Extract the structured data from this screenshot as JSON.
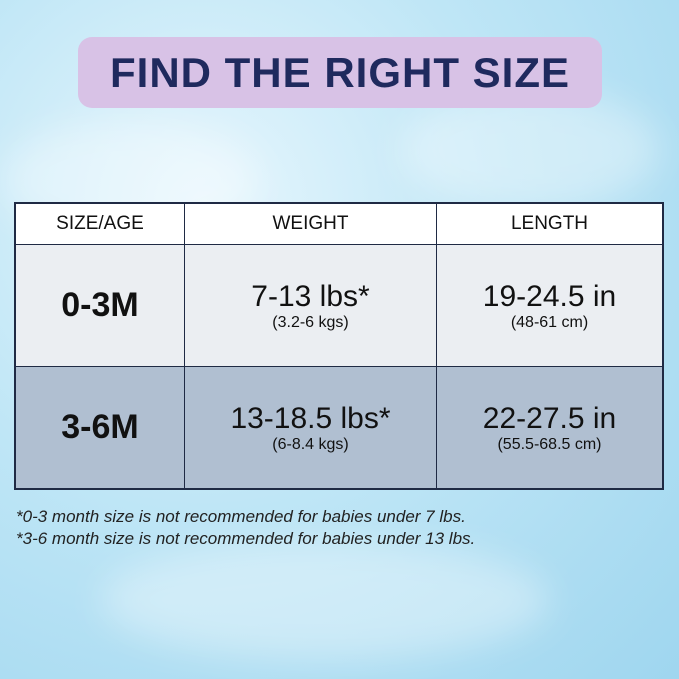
{
  "title": "FIND THE RIGHT SIZE",
  "table": {
    "headers": [
      "SIZE/AGE",
      "WEIGHT",
      "LENGTH"
    ],
    "rows": [
      {
        "size": "0-3M",
        "weight": "7-13 lbs*",
        "weight_metric": "(3.2-6 kgs)",
        "length": "19-24.5 in",
        "length_metric": "(48-61 cm)"
      },
      {
        "size": "3-6M",
        "weight": "13-18.5 lbs*",
        "weight_metric": "(6-8.4 kgs)",
        "length": "22-27.5 in",
        "length_metric": "(55.5-68.5 cm)"
      }
    ]
  },
  "notes": [
    "*0-3 month size is not recommended for babies under 7 lbs.",
    "*3-6 month size is not recommended for babies under 13 lbs."
  ],
  "colors": {
    "title_bg": "#d8c2e6",
    "title_text": "#1f2a5e",
    "row1_bg": "#ebeef2",
    "row2_bg": "#b0bfd1"
  }
}
